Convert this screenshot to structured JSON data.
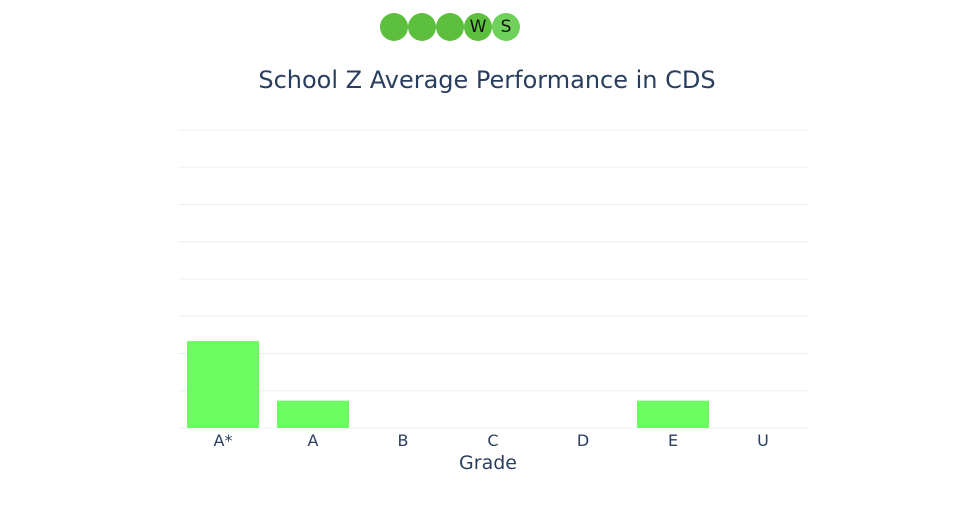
{
  "badges": [
    {
      "label": "",
      "color": "#5cbf3e"
    },
    {
      "label": "",
      "color": "#5cbf3e"
    },
    {
      "label": "",
      "color": "#5cbf3e"
    },
    {
      "label": "W",
      "color": "#5cbf3e"
    },
    {
      "label": "S",
      "color": "#6ed15a"
    }
  ],
  "chart_data": {
    "type": "bar",
    "title": "School Z Average Performance in CDS",
    "xlabel": "Grade",
    "ylabel": "",
    "categories": [
      "A*",
      "A",
      "B",
      "C",
      "D",
      "E",
      "U"
    ],
    "values": [
      7,
      2.2,
      0,
      0,
      0,
      2.2,
      0
    ],
    "ylim": [
      0,
      24
    ],
    "bar_color": "#6dfd62",
    "grid_color": "#ebeff5",
    "grid": true
  }
}
